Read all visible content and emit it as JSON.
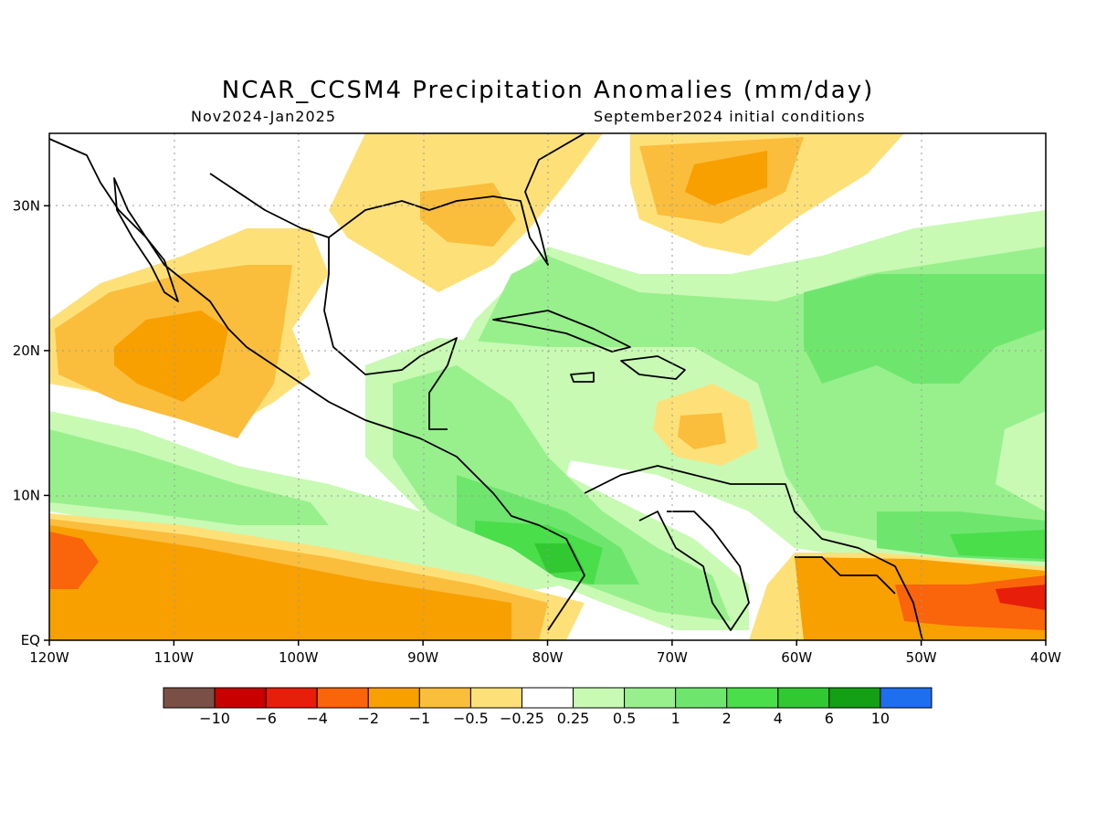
{
  "title": "NCAR_CCSM4 Precipitation Anomalies (mm/day)",
  "subtitle_left": "Nov2024-Jan2025",
  "subtitle_right": "September2024 initial conditions",
  "map": {
    "lon_range": [
      -120,
      -40
    ],
    "lat_range": [
      0,
      35
    ],
    "grid": true,
    "x_tick_labels": [
      "120W",
      "110W",
      "100W",
      "90W",
      "80W",
      "70W",
      "60W",
      "50W",
      "40W"
    ],
    "y_tick_labels": [
      "EQ",
      "10N",
      "20N",
      "30N"
    ]
  },
  "colorbar": {
    "colors": [
      "#7a5046",
      "#c80000",
      "#e61e0a",
      "#fa640a",
      "#f7a000",
      "#fbbd3c",
      "#fde178",
      "#ffffff",
      "#c8fab4",
      "#98f08c",
      "#6ee66e",
      "#4ade4a",
      "#32c832",
      "#14a014",
      "#1e6ef0"
    ],
    "labels": [
      "−10",
      "−6",
      "−4",
      "−2",
      "−1",
      "−0.5",
      "−0.25",
      "0.25",
      "0.5",
      "1",
      "2",
      "4",
      "6",
      "10"
    ]
  }
}
